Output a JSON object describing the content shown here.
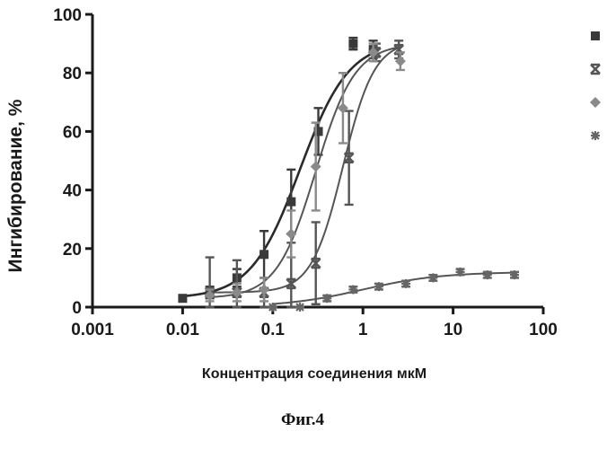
{
  "chart_data": {
    "type": "scatter",
    "title": "",
    "caption": "Фиг.4",
    "xlabel": "Концентрация  соединения мкМ",
    "ylabel": "Ингибирование, %",
    "xscale": "log",
    "xlim": [
      0.001,
      100
    ],
    "ylim": [
      0,
      100
    ],
    "xticks": [
      "0.001",
      "0.01",
      "0.1",
      "1",
      "10",
      "100"
    ],
    "yticks": [
      "0",
      "20",
      "40",
      "60",
      "80",
      "100"
    ],
    "grid": false,
    "legend": "top-right",
    "series": [
      {
        "marker": "square",
        "color": "#3a3a3a",
        "x": [
          0.01,
          0.02,
          0.04,
          0.08,
          0.16,
          0.32,
          0.78,
          1.3
        ],
        "y": [
          3,
          5,
          10,
          18,
          36,
          60,
          90,
          88
        ],
        "err": [
          0,
          2,
          3,
          8,
          11,
          8,
          2,
          3
        ],
        "fit": {
          "bottom": 3,
          "top": 91,
          "ic50": 0.2,
          "hill": 1.6
        }
      },
      {
        "marker": "x",
        "color": "#555555",
        "x": [
          0.02,
          0.04,
          0.08,
          0.16,
          0.3,
          0.7,
          1.4,
          2.5
        ],
        "y": [
          5,
          5,
          5,
          8,
          15,
          51,
          87,
          88
        ],
        "err": [
          12,
          11,
          5,
          14,
          14,
          16,
          3,
          3
        ],
        "fit": {
          "bottom": 5,
          "top": 91,
          "ic50": 0.6,
          "hill": 2.5
        }
      },
      {
        "marker": "diamond",
        "color": "#8a8a8a",
        "x": [
          0.02,
          0.04,
          0.08,
          0.16,
          0.3,
          0.6,
          1.3,
          2.6
        ],
        "y": [
          4,
          5,
          6,
          25,
          48,
          68,
          87,
          84
        ],
        "err": [
          2,
          3,
          4,
          8,
          15,
          12,
          3,
          3
        ],
        "fit": {
          "bottom": 3,
          "top": 90,
          "ic50": 0.3,
          "hill": 2.0
        }
      },
      {
        "marker": "star",
        "color": "#666666",
        "x": [
          0.1,
          0.2,
          0.4,
          0.78,
          1.5,
          3,
          6,
          12,
          24,
          48
        ],
        "y": [
          0,
          0,
          3,
          6,
          7,
          8,
          10,
          12,
          11,
          11
        ],
        "err": [
          0,
          0,
          1,
          1,
          1,
          1,
          1,
          1,
          1,
          1
        ],
        "fit": {
          "bottom": 0,
          "top": 12,
          "ic50": 1.0,
          "hill": 1.0
        }
      }
    ]
  }
}
